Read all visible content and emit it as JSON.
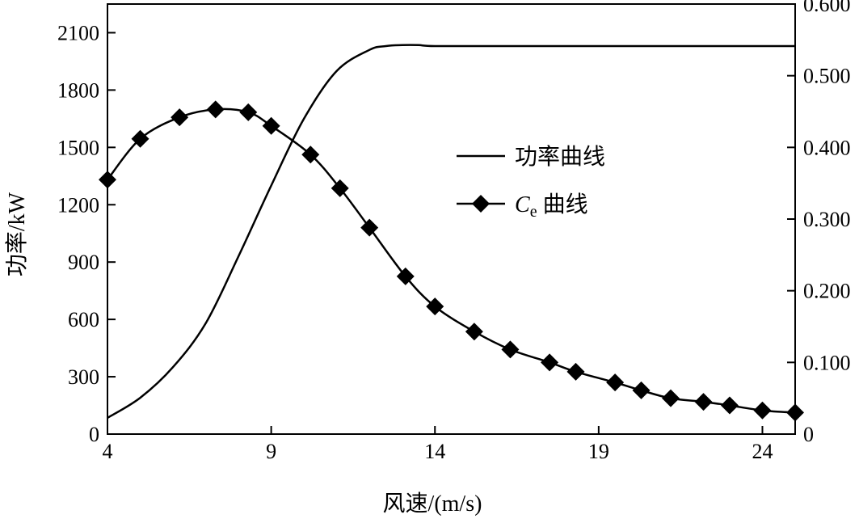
{
  "chart_data": {
    "type": "line",
    "xlabel": "风速/(m/s)",
    "ylabel": "功率/kW",
    "xlim": [
      4,
      25
    ],
    "ylim_left": [
      0,
      2250
    ],
    "ylim_right": [
      0,
      0.6
    ],
    "x_ticks": [
      4,
      9,
      14,
      19,
      24
    ],
    "x_tick_labels": [
      "4",
      "9",
      "14",
      "19",
      "24"
    ],
    "y_left_ticks": [
      0,
      300,
      600,
      900,
      1200,
      1500,
      1800,
      2100
    ],
    "y_left_tick_labels": [
      "0",
      "300",
      "600",
      "900",
      "1200",
      "1500",
      "1800",
      "2100"
    ],
    "y_right_ticks": [
      0,
      0.1,
      0.2,
      0.3,
      0.4,
      0.5,
      0.6
    ],
    "y_right_tick_labels": [
      "0",
      "0.100",
      "0.200",
      "0.300",
      "0.400",
      "0.500",
      "0.600"
    ],
    "grid": false,
    "legend_position": "right-middle",
    "series": [
      {
        "name": "功率曲线",
        "axis": "left",
        "marker": "none",
        "color": "#000000",
        "x": [
          4,
          5,
          6,
          7,
          8,
          9,
          10,
          11,
          12,
          12.5,
          13,
          13.5,
          14,
          16,
          18,
          20,
          22,
          24,
          25
        ],
        "y": [
          85,
          190,
          350,
          580,
          930,
          1300,
          1650,
          1900,
          2010,
          2030,
          2035,
          2035,
          2030,
          2030,
          2030,
          2030,
          2030,
          2030,
          2030
        ]
      },
      {
        "name_prefix": "C",
        "name_sub": "e",
        "name_suffix": " 曲线",
        "axis": "right",
        "marker": "diamond",
        "color": "#000000",
        "x": [
          4,
          5,
          6.2,
          7.3,
          8.3,
          9,
          10.2,
          11.1,
          12,
          13.1,
          14,
          15.2,
          16.3,
          17.5,
          18.3,
          19.5,
          20.3,
          21.2,
          22.2,
          23,
          24,
          25
        ],
        "y": [
          0.355,
          0.412,
          0.442,
          0.453,
          0.449,
          0.43,
          0.39,
          0.343,
          0.288,
          0.22,
          0.178,
          0.143,
          0.118,
          0.1,
          0.087,
          0.072,
          0.061,
          0.05,
          0.045,
          0.04,
          0.033,
          0.03
        ]
      }
    ]
  }
}
